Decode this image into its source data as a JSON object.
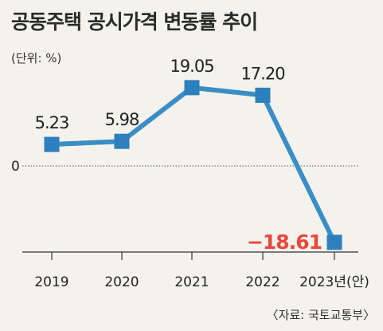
{
  "header": {
    "title": "공동주택 공시가격 변동률 추이",
    "unit": "(단위: %)"
  },
  "footer": {
    "source": "〈자료: 국토교통부〉"
  },
  "colors": {
    "line": "#3a8ec5",
    "marker": "#2d7fbd",
    "negative_label": "#e8473a",
    "background": "#f4f2ec"
  },
  "chart_data": {
    "type": "line",
    "title": "공동주택 공시가격 변동률 추이",
    "xlabel": "",
    "ylabel": "",
    "categories": [
      "2019",
      "2020",
      "2021",
      "2022",
      "2023년(안)"
    ],
    "values": [
      5.23,
      5.98,
      19.05,
      17.2,
      -18.61
    ],
    "value_labels": [
      "5.23",
      "5.98",
      "19.05",
      "17.20",
      "−18.61"
    ],
    "zero_label": "0",
    "ylim": [
      -23,
      24
    ],
    "grid": false
  }
}
